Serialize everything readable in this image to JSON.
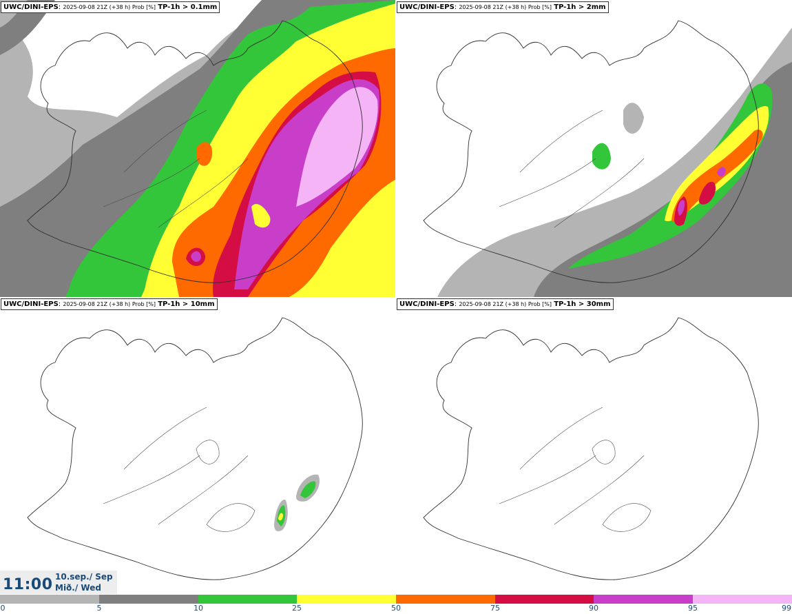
{
  "panels": [
    {
      "model": "UWC/DINI-EPS",
      "run": "2025-09-08 21Z (+38 h) Prob [%]",
      "param": "TP-1h > 0.1mm"
    },
    {
      "model": "UWC/DINI-EPS",
      "run": "2025-09-08 21Z (+38 h) Prob [%]",
      "param": "TP-1h > 2mm"
    },
    {
      "model": "UWC/DINI-EPS",
      "run": "2025-09-08 21Z (+38 h) Prob [%]",
      "param": "TP-1h > 10mm"
    },
    {
      "model": "UWC/DINI-EPS",
      "run": "2025-09-08 21Z (+38 h) Prob [%]",
      "param": "TP-1h > 30mm"
    }
  ],
  "time": {
    "clock": "11:00",
    "date_line": "10.sep./ Sep",
    "day_line": "Mið./ Wed"
  },
  "colorbar": {
    "ticks": [
      "0",
      "5",
      "10",
      "25",
      "50",
      "75",
      "90",
      "95",
      "99"
    ],
    "colors": [
      "#ffffff",
      "#b4b4b4",
      "#7f7f7f",
      "#33c63b",
      "#ffff33",
      "#ff6a00",
      "#d40e45",
      "#c83ec8",
      "#f5b4f5"
    ]
  }
}
